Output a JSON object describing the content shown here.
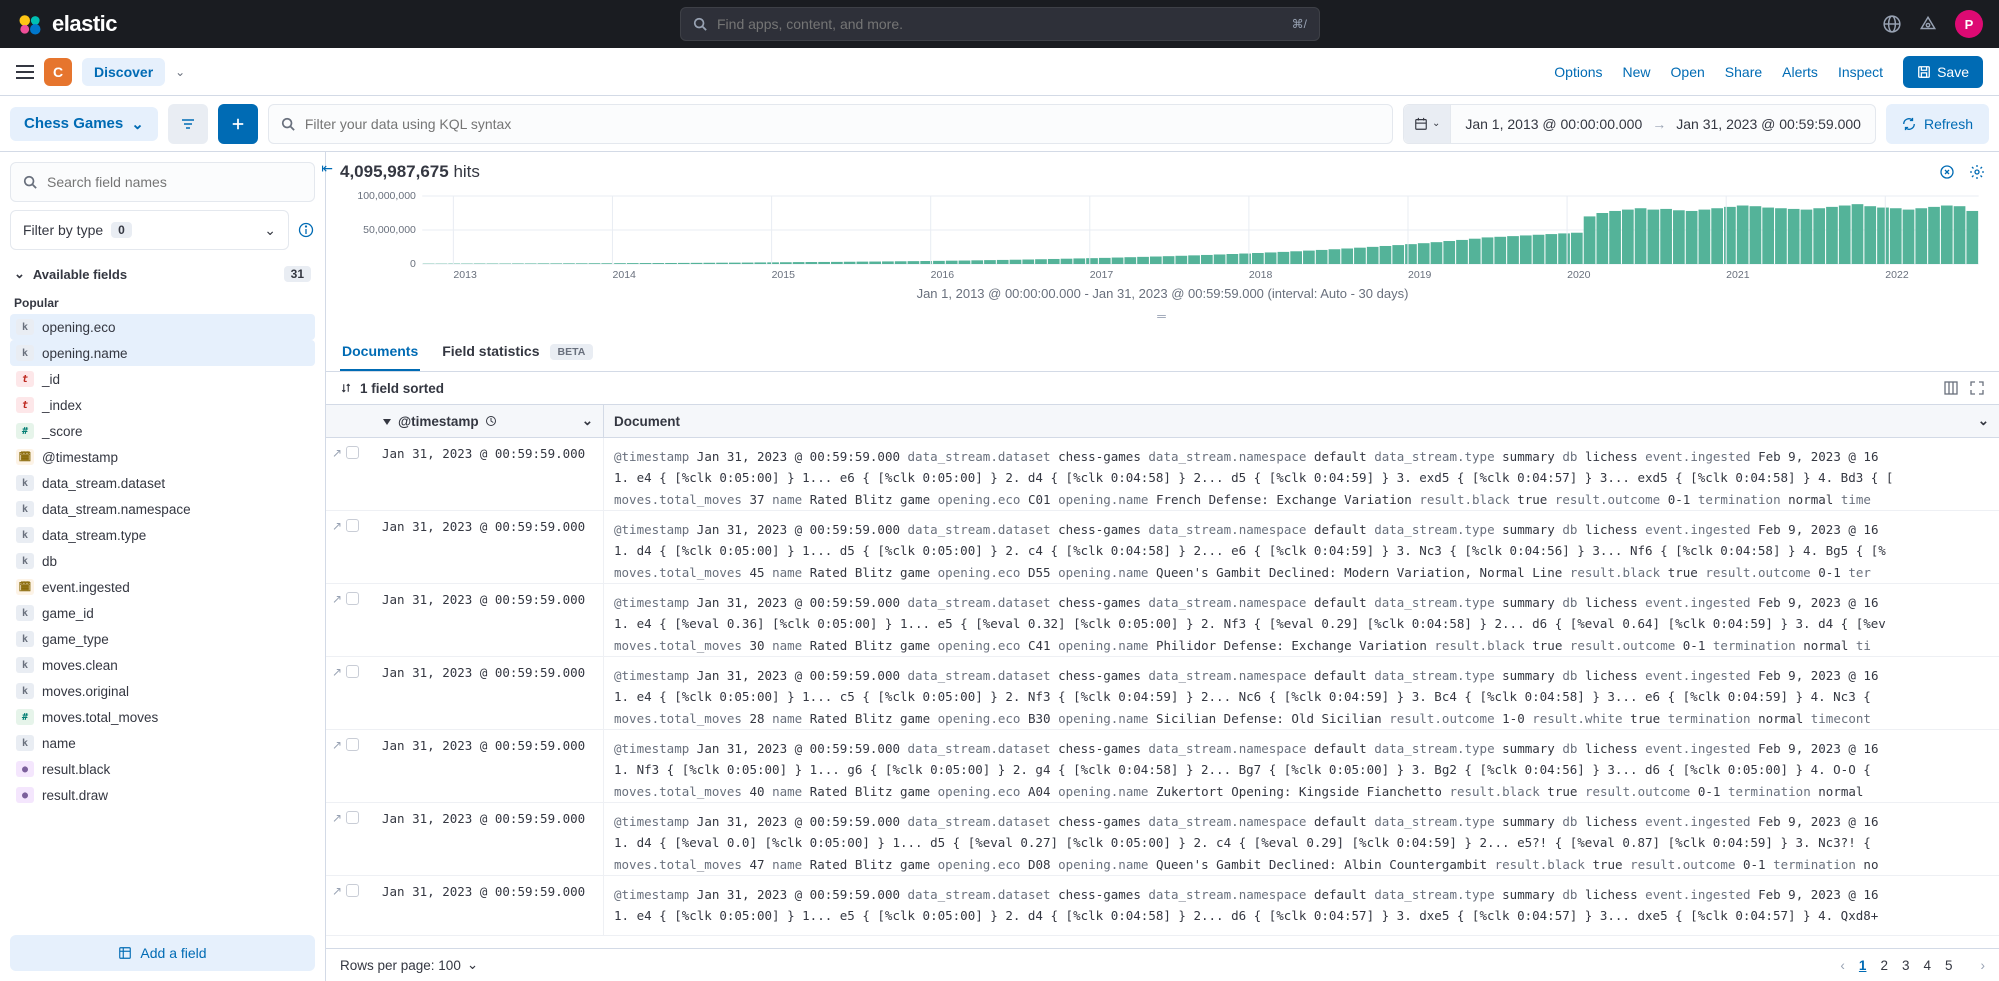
{
  "brand": {
    "name": "elastic"
  },
  "topbar": {
    "search_placeholder": "Find apps, content, and more.",
    "shortcut": "⌘/",
    "avatar_initial": "P"
  },
  "subheader": {
    "space_initial": "C",
    "app_label": "Discover",
    "links": [
      "Options",
      "New",
      "Open",
      "Share",
      "Alerts",
      "Inspect"
    ],
    "save_label": "Save"
  },
  "querybar": {
    "dataview": "Chess Games",
    "kql_placeholder": "Filter your data using KQL syntax",
    "date_from": "Jan 1, 2013 @ 00:00:00.000",
    "date_to": "Jan 31, 2023 @ 00:59:59.000",
    "refresh_label": "Refresh"
  },
  "sidebar": {
    "search_placeholder": "Search field names",
    "filter_type_label": "Filter by type",
    "filter_type_count": "0",
    "available_label": "Available fields",
    "available_count": "31",
    "popular_label": "Popular",
    "popular_fields": [
      {
        "name": "opening.eco",
        "type": "k",
        "hl": true
      },
      {
        "name": "opening.name",
        "type": "k",
        "hl": true
      }
    ],
    "fields": [
      {
        "name": "_id",
        "type": "t"
      },
      {
        "name": "_index",
        "type": "t"
      },
      {
        "name": "_score",
        "type": "hash"
      },
      {
        "name": "@timestamp",
        "type": "date"
      },
      {
        "name": "data_stream.dataset",
        "type": "k"
      },
      {
        "name": "data_stream.namespace",
        "type": "k"
      },
      {
        "name": "data_stream.type",
        "type": "k"
      },
      {
        "name": "db",
        "type": "k"
      },
      {
        "name": "event.ingested",
        "type": "date"
      },
      {
        "name": "game_id",
        "type": "k"
      },
      {
        "name": "game_type",
        "type": "k"
      },
      {
        "name": "moves.clean",
        "type": "k"
      },
      {
        "name": "moves.original",
        "type": "k"
      },
      {
        "name": "moves.total_moves",
        "type": "hash"
      },
      {
        "name": "name",
        "type": "k"
      },
      {
        "name": "result.black",
        "type": "bool"
      },
      {
        "name": "result.draw",
        "type": "bool"
      }
    ],
    "add_field_label": "Add a field"
  },
  "results": {
    "hits_count": "4,095,987,675",
    "hits_suffix": "hits",
    "chart": {
      "y_ticks": [
        "100,000,000",
        "50,000,000",
        "0"
      ],
      "x_ticks": [
        "2013",
        "2014",
        "2015",
        "2016",
        "2017",
        "2018",
        "2019",
        "2020",
        "2021",
        "2022"
      ],
      "caption": "Jan 1, 2013 @ 00:00:00.000 - Jan 31, 2023 @ 00:59:59.000 (interval: Auto - 30 days)",
      "bar_color": "#54b399",
      "grid_color": "#e9edf3",
      "text_color": "#69707d",
      "y_max": 100000000,
      "bar_values": [
        0.5,
        0.5,
        0.6,
        0.6,
        0.7,
        0.7,
        0.7,
        0.8,
        0.8,
        0.9,
        0.9,
        1.0,
        1.0,
        1.1,
        1.1,
        1.2,
        1.3,
        1.4,
        1.4,
        1.5,
        1.6,
        1.7,
        1.8,
        1.9,
        2.0,
        2.1,
        2.3,
        2.4,
        2.6,
        2.8,
        2.9,
        3.0,
        3.1,
        3.3,
        3.5,
        3.6,
        3.8,
        4.0,
        4.2,
        4.4,
        4.6,
        4.9,
        5.1,
        5.4,
        5.7,
        6.0,
        6.3,
        6.6,
        7.0,
        7.4,
        7.8,
        8.2,
        8.6,
        9.0,
        9.5,
        10.0,
        10.5,
        11.0,
        11.5,
        12.1,
        12.7,
        13.3,
        14.0,
        14.7,
        15.4,
        16.2,
        17.0,
        17.8,
        18.7,
        19.7,
        20.7,
        21.7,
        22.8,
        24.0,
        25.2,
        26.5,
        27.8,
        29.2,
        30.6,
        32.1,
        33.8,
        35.4,
        37.2,
        39.1,
        40.0,
        41.0,
        42.0,
        43.0,
        44.0,
        45.0,
        46.0,
        70.0,
        75.0,
        78.0,
        80.0,
        82.0,
        80.0,
        81.0,
        79.0,
        78.0,
        80.0,
        82.0,
        84.0,
        86.0,
        85.0,
        83.0,
        82.0,
        81.0,
        80.0,
        82.0,
        84.0,
        86.0,
        88.0,
        85.0,
        83.0,
        82.0,
        80.0,
        82.0,
        84.0,
        86.0,
        85.0,
        78.0
      ]
    },
    "tabs": {
      "documents": "Documents",
      "field_stats": "Field statistics",
      "beta": "BETA"
    },
    "sort_label": "1 field sorted",
    "columns": {
      "timestamp": "@timestamp",
      "document": "Document"
    },
    "rows": [
      {
        "ts": "Jan 31, 2023 @ 00:59:59.000",
        "fields": [
          [
            "@timestamp",
            "Jan 31, 2023 @ 00:59:59.000"
          ],
          [
            "data_stream.dataset",
            "chess-games"
          ],
          [
            "data_stream.namespace",
            "default"
          ],
          [
            "data_stream.type",
            "summary"
          ],
          [
            "db",
            "lichess"
          ],
          [
            "event.ingested",
            "Feb 9, 2023 @ 16"
          ]
        ],
        "line2_fields": [
          [
            "",
            "1. e4 { [%clk 0:05:00] } 1... e6 { [%clk 0:05:00] } 2. d4 { [%clk 0:04:58] } 2... d5 { [%clk 0:04:59] } 3. exd5 { [%clk 0:04:57] } 3... exd5 { [%clk 0:04:58] } 4. Bd3 { ["
          ]
        ],
        "line3_fields": [
          [
            "moves.total_moves",
            "37"
          ],
          [
            "name",
            "Rated Blitz game"
          ],
          [
            "opening.eco",
            "C01"
          ],
          [
            "opening.name",
            "French Defense: Exchange Variation"
          ],
          [
            "result.black",
            "true"
          ],
          [
            "result.outcome",
            "0-1"
          ],
          [
            "termination",
            "normal"
          ],
          [
            "time",
            ""
          ]
        ]
      },
      {
        "ts": "Jan 31, 2023 @ 00:59:59.000",
        "fields": [
          [
            "@timestamp",
            "Jan 31, 2023 @ 00:59:59.000"
          ],
          [
            "data_stream.dataset",
            "chess-games"
          ],
          [
            "data_stream.namespace",
            "default"
          ],
          [
            "data_stream.type",
            "summary"
          ],
          [
            "db",
            "lichess"
          ],
          [
            "event.ingested",
            "Feb 9, 2023 @ 16"
          ]
        ],
        "line2_fields": [
          [
            "",
            "1. d4 { [%clk 0:05:00] } 1... d5 { [%clk 0:05:00] } 2. c4 { [%clk 0:04:58] } 2... e6 { [%clk 0:04:59] } 3. Nc3 { [%clk 0:04:56] } 3... Nf6 { [%clk 0:04:58] } 4. Bg5 { [%"
          ]
        ],
        "line3_fields": [
          [
            "moves.total_moves",
            "45"
          ],
          [
            "name",
            "Rated Blitz game"
          ],
          [
            "opening.eco",
            "D55"
          ],
          [
            "opening.name",
            "Queen's Gambit Declined: Modern Variation, Normal Line"
          ],
          [
            "result.black",
            "true"
          ],
          [
            "result.outcome",
            "0-1"
          ],
          [
            "ter",
            ""
          ]
        ]
      },
      {
        "ts": "Jan 31, 2023 @ 00:59:59.000",
        "fields": [
          [
            "@timestamp",
            "Jan 31, 2023 @ 00:59:59.000"
          ],
          [
            "data_stream.dataset",
            "chess-games"
          ],
          [
            "data_stream.namespace",
            "default"
          ],
          [
            "data_stream.type",
            "summary"
          ],
          [
            "db",
            "lichess"
          ],
          [
            "event.ingested",
            "Feb 9, 2023 @ 16"
          ]
        ],
        "line2_fields": [
          [
            "",
            "1. e4 { [%eval 0.36] [%clk 0:05:00] } 1... e5 { [%eval 0.32] [%clk 0:05:00] } 2. Nf3 { [%eval 0.29] [%clk 0:04:58] } 2... d6 { [%eval 0.64] [%clk 0:04:59] } 3. d4 { [%ev"
          ]
        ],
        "line3_fields": [
          [
            "moves.total_moves",
            "30"
          ],
          [
            "name",
            "Rated Blitz game"
          ],
          [
            "opening.eco",
            "C41"
          ],
          [
            "opening.name",
            "Philidor Defense: Exchange Variation"
          ],
          [
            "result.black",
            "true"
          ],
          [
            "result.outcome",
            "0-1"
          ],
          [
            "termination",
            "normal"
          ],
          [
            "ti",
            ""
          ]
        ]
      },
      {
        "ts": "Jan 31, 2023 @ 00:59:59.000",
        "fields": [
          [
            "@timestamp",
            "Jan 31, 2023 @ 00:59:59.000"
          ],
          [
            "data_stream.dataset",
            "chess-games"
          ],
          [
            "data_stream.namespace",
            "default"
          ],
          [
            "data_stream.type",
            "summary"
          ],
          [
            "db",
            "lichess"
          ],
          [
            "event.ingested",
            "Feb 9, 2023 @ 16"
          ]
        ],
        "line2_fields": [
          [
            "",
            "1. e4 { [%clk 0:05:00] } 1... c5 { [%clk 0:05:00] } 2. Nf3 { [%clk 0:04:59] } 2... Nc6 { [%clk 0:04:59] } 3. Bc4 { [%clk 0:04:58] } 3... e6 { [%clk 0:04:59] } 4. Nc3 {"
          ]
        ],
        "line3_fields": [
          [
            "moves.total_moves",
            "28"
          ],
          [
            "name",
            "Rated Blitz game"
          ],
          [
            "opening.eco",
            "B30"
          ],
          [
            "opening.name",
            "Sicilian Defense: Old Sicilian"
          ],
          [
            "result.outcome",
            "1-0"
          ],
          [
            "result.white",
            "true"
          ],
          [
            "termination",
            "normal"
          ],
          [
            "timecont",
            ""
          ]
        ]
      },
      {
        "ts": "Jan 31, 2023 @ 00:59:59.000",
        "fields": [
          [
            "@timestamp",
            "Jan 31, 2023 @ 00:59:59.000"
          ],
          [
            "data_stream.dataset",
            "chess-games"
          ],
          [
            "data_stream.namespace",
            "default"
          ],
          [
            "data_stream.type",
            "summary"
          ],
          [
            "db",
            "lichess"
          ],
          [
            "event.ingested",
            "Feb 9, 2023 @ 16"
          ]
        ],
        "line2_fields": [
          [
            "",
            "1. Nf3 { [%clk 0:05:00] } 1... g6 { [%clk 0:05:00] } 2. g4 { [%clk 0:04:58] } 2... Bg7 { [%clk 0:05:00] } 3. Bg2 { [%clk 0:04:56] } 3... d6 { [%clk 0:05:00] } 4. O-O {"
          ]
        ],
        "line3_fields": [
          [
            "moves.total_moves",
            "40"
          ],
          [
            "name",
            "Rated Blitz game"
          ],
          [
            "opening.eco",
            "A04"
          ],
          [
            "opening.name",
            "Zukertort Opening: Kingside Fianchetto"
          ],
          [
            "result.black",
            "true"
          ],
          [
            "result.outcome",
            "0-1"
          ],
          [
            "termination",
            "normal"
          ],
          [
            "",
            ""
          ]
        ]
      },
      {
        "ts": "Jan 31, 2023 @ 00:59:59.000",
        "fields": [
          [
            "@timestamp",
            "Jan 31, 2023 @ 00:59:59.000"
          ],
          [
            "data_stream.dataset",
            "chess-games"
          ],
          [
            "data_stream.namespace",
            "default"
          ],
          [
            "data_stream.type",
            "summary"
          ],
          [
            "db",
            "lichess"
          ],
          [
            "event.ingested",
            "Feb 9, 2023 @ 16"
          ]
        ],
        "line2_fields": [
          [
            "",
            "1. d4 { [%eval 0.0] [%clk 0:05:00] } 1... d5 { [%eval 0.27] [%clk 0:05:00] } 2. c4 { [%eval 0.29] [%clk 0:04:59] } 2... e5?! { [%eval 0.87] [%clk 0:04:59] } 3. Nc3?! {"
          ]
        ],
        "line3_fields": [
          [
            "moves.total_moves",
            "47"
          ],
          [
            "name",
            "Rated Blitz game"
          ],
          [
            "opening.eco",
            "D08"
          ],
          [
            "opening.name",
            "Queen's Gambit Declined: Albin Countergambit"
          ],
          [
            "result.black",
            "true"
          ],
          [
            "result.outcome",
            "0-1"
          ],
          [
            "termination",
            "no"
          ]
        ]
      },
      {
        "ts": "Jan 31, 2023 @ 00:59:59.000",
        "fields": [
          [
            "@timestamp",
            "Jan 31, 2023 @ 00:59:59.000"
          ],
          [
            "data_stream.dataset",
            "chess-games"
          ],
          [
            "data_stream.namespace",
            "default"
          ],
          [
            "data_stream.type",
            "summary"
          ],
          [
            "db",
            "lichess"
          ],
          [
            "event.ingested",
            "Feb 9, 2023 @ 16"
          ]
        ],
        "line2_fields": [
          [
            "",
            "1. e4 { [%clk 0:05:00] } 1... e5 { [%clk 0:05:00] } 2. d4 { [%clk 0:04:58] } 2... d6 { [%clk 0:04:57] } 3. dxe5 { [%clk 0:04:57] } 3... dxe5 { [%clk 0:04:57] } 4. Qxd8+"
          ]
        ],
        "line3_fields": []
      }
    ],
    "rows_per_page_label": "Rows per page: 100",
    "pages": [
      "1",
      "2",
      "3",
      "4",
      "5"
    ]
  }
}
